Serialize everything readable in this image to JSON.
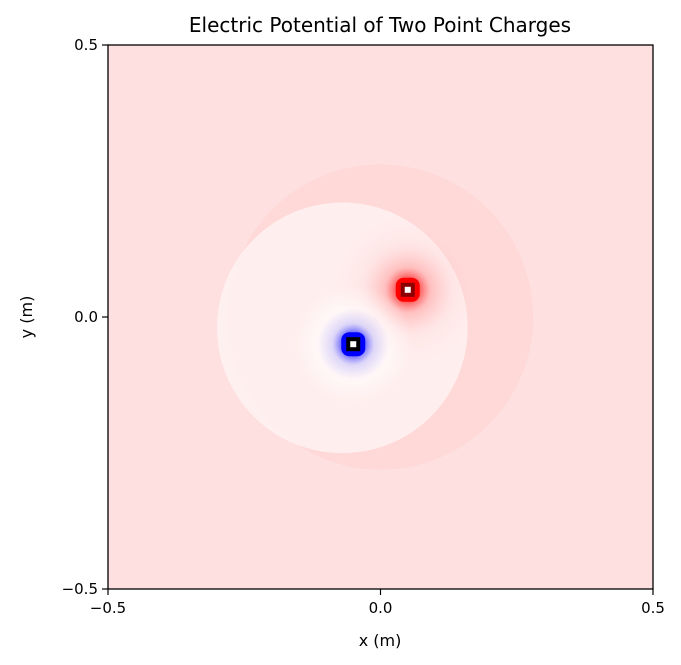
{
  "chart_data": {
    "type": "heatmap",
    "title": "Electric Potential of Two Point Charges",
    "xlabel": "x (m)",
    "ylabel": "y (m)",
    "xlim": [
      -0.5,
      0.5
    ],
    "ylim": [
      -0.5,
      0.5
    ],
    "xticks": [
      -0.5,
      0.0,
      0.5
    ],
    "yticks": [
      -0.5,
      0.0,
      0.5
    ],
    "xtick_labels": [
      "−0.5",
      "0.0",
      "0.5"
    ],
    "ytick_labels": [
      "−0.5",
      "0.0",
      "0.5"
    ],
    "grid": false,
    "colormap": "bwr",
    "colors": {
      "negative": "#0000ff",
      "zero": "#ffffff",
      "positive": "#ff0000",
      "background_tint": "#ffe0e0"
    },
    "charges": [
      {
        "sign": "positive",
        "x": 0.05,
        "y": 0.05
      },
      {
        "sign": "negative",
        "x": -0.05,
        "y": -0.05
      }
    ]
  }
}
